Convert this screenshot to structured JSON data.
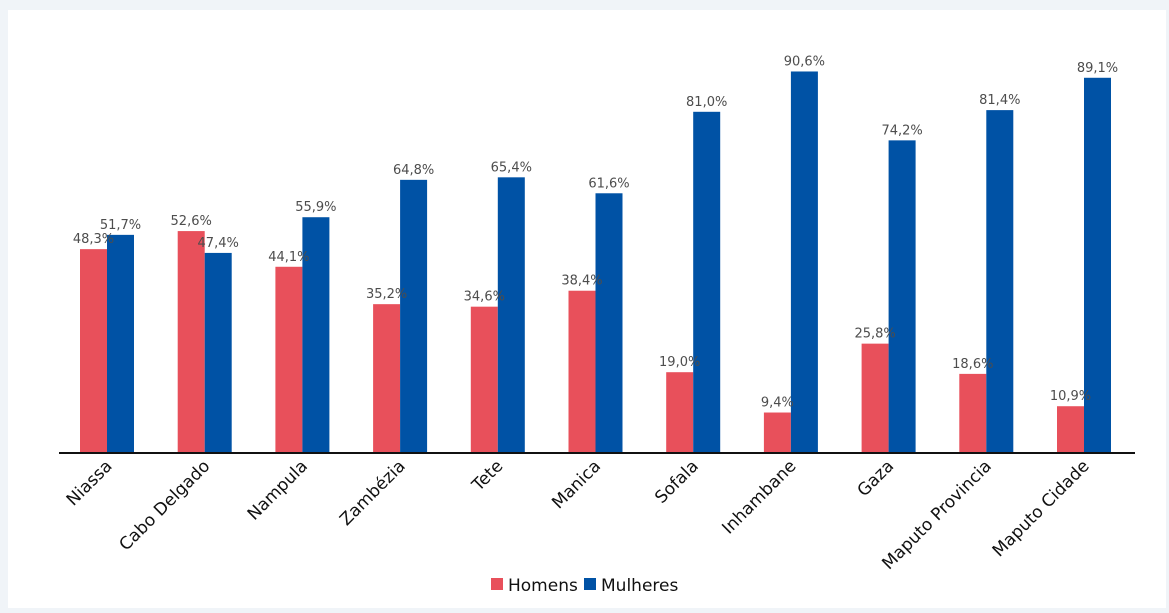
{
  "chart_data": {
    "type": "bar",
    "categories": [
      "Niassa",
      "Cabo Delgado",
      "Nampula",
      "Zambézia",
      "Tete",
      "Manica",
      "Sofala",
      "Inhambane",
      "Gaza",
      "Maputo Provincia",
      "Maputo Cidade"
    ],
    "series": [
      {
        "name": "Homens",
        "color": "#e8505b",
        "values": [
          48.3,
          52.6,
          44.1,
          35.2,
          34.6,
          38.4,
          19.0,
          9.4,
          25.8,
          18.6,
          10.9
        ],
        "labels": [
          "48,3%",
          "52,6%",
          "44,1%",
          "35,2%",
          "34,6%",
          "38,4%",
          "19,0%",
          "9,4%",
          "25,8%",
          "18,6%",
          "10,9%"
        ]
      },
      {
        "name": "Mulheres",
        "color": "#0052a5",
        "values": [
          51.7,
          47.4,
          55.9,
          64.8,
          65.4,
          61.6,
          81.0,
          90.6,
          74.2,
          81.4,
          89.1
        ],
        "labels": [
          "51,7%",
          "47,4%",
          "55,9%",
          "64,8%",
          "65,4%",
          "61,6%",
          "81,0%",
          "90,6%",
          "74,2%",
          "81,4%",
          "89,1%"
        ]
      }
    ],
    "ylim": [
      0,
      100
    ],
    "grid": false,
    "legend_position": "bottom-center"
  }
}
